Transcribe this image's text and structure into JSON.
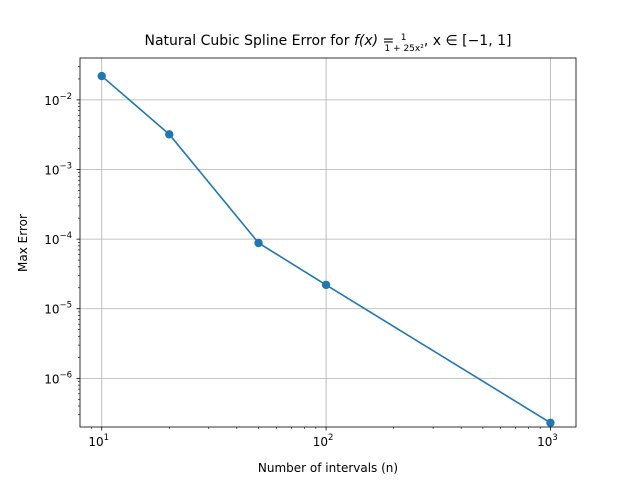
{
  "chart_data": {
    "type": "line",
    "title": {
      "prefix": "Natural Cubic Spline Error for ",
      "f_of_x": "f(x) = ",
      "frac_num": "1",
      "frac_den": "1 + 25x²",
      "suffix": ", x ∈ [−1, 1]"
    },
    "xlabel": "Number of intervals (n)",
    "ylabel": "Max Error",
    "xscale": "log",
    "yscale": "log",
    "xlim": [
      8,
      1300
    ],
    "ylim": [
      2e-07,
      0.04
    ],
    "x_ticks": [
      {
        "value": 10,
        "base": "10",
        "exp": "1"
      },
      {
        "value": 100,
        "base": "10",
        "exp": "2"
      },
      {
        "value": 1000,
        "base": "10",
        "exp": "3"
      }
    ],
    "y_ticks": [
      {
        "value": 1e-06,
        "base": "10",
        "exp": "−6"
      },
      {
        "value": 1e-05,
        "base": "10",
        "exp": "−5"
      },
      {
        "value": 0.0001,
        "base": "10",
        "exp": "−4"
      },
      {
        "value": 0.001,
        "base": "10",
        "exp": "−3"
      },
      {
        "value": 0.01,
        "base": "10",
        "exp": "−2"
      }
    ],
    "grid": true,
    "series": [
      {
        "color": "#1f77b4",
        "marker": "circle",
        "x": [
          10,
          20,
          50,
          100,
          1000
        ],
        "y": [
          0.022,
          0.0032,
          8.8e-05,
          2.2e-05,
          2.3e-07
        ]
      }
    ]
  }
}
